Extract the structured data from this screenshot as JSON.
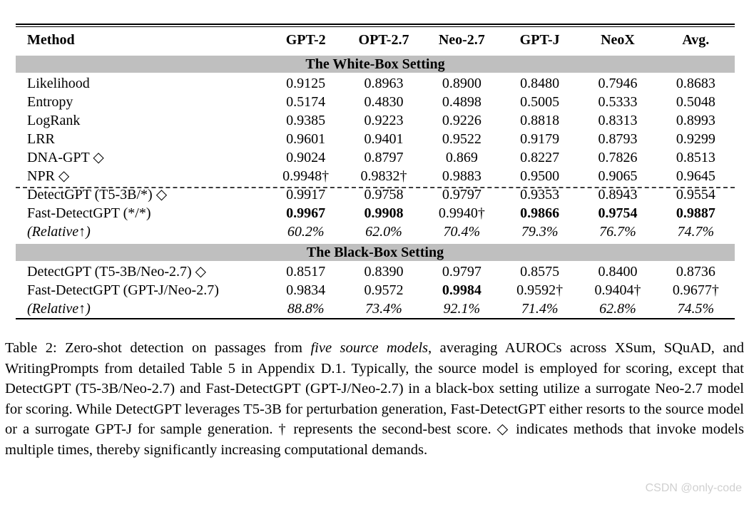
{
  "table": {
    "columns": [
      "Method",
      "GPT-2",
      "OPT-2.7",
      "Neo-2.7",
      "GPT-J",
      "NeoX",
      "Avg."
    ],
    "sections": [
      {
        "title": "The White-Box Setting",
        "rows": [
          {
            "cells": [
              "Likelihood",
              "0.9125",
              "0.8963",
              "0.8900",
              "0.8480",
              "0.7946",
              "0.8683"
            ]
          },
          {
            "cells": [
              "Entropy",
              "0.5174",
              "0.4830",
              "0.4898",
              "0.5005",
              "0.5333",
              "0.5048"
            ]
          },
          {
            "cells": [
              "LogRank",
              "0.9385",
              "0.9223",
              "0.9226",
              "0.8818",
              "0.8313",
              "0.8993"
            ]
          },
          {
            "cells": [
              "LRR",
              "0.9601",
              "0.9401",
              "0.9522",
              "0.9179",
              "0.8793",
              "0.9299"
            ]
          },
          {
            "cells": [
              "DNA-GPT ◇",
              "0.9024",
              "0.8797",
              "0.869",
              "0.8227",
              "0.7826",
              "0.8513"
            ]
          },
          {
            "cells": [
              "NPR ◇",
              "0.9948†",
              "0.9832†",
              "0.9883",
              "0.9500",
              "0.9065",
              "0.9645"
            ]
          },
          {
            "cells": [
              "DetectGPT (T5-3B/*) ◇",
              "0.9917",
              "0.9758",
              "0.9797",
              "0.9353",
              "0.8943",
              "0.9554"
            ]
          },
          {
            "cells": [
              "Fast-DetectGPT (*/*)",
              "0.9967",
              "0.9908",
              "0.9940†",
              "0.9866",
              "0.9754",
              "0.9887"
            ]
          },
          {
            "cells": [
              "(Relative↑)",
              "60.2%",
              "62.0%",
              "70.4%",
              "79.3%",
              "76.7%",
              "74.7%"
            ]
          }
        ]
      },
      {
        "title": "The Black-Box Setting",
        "rows": [
          {
            "cells": [
              "DetectGPT (T5-3B/Neo-2.7) ◇",
              "0.8517",
              "0.8390",
              "0.9797",
              "0.8575",
              "0.8400",
              "0.8736"
            ]
          },
          {
            "cells": [
              "Fast-DetectGPT (GPT-J/Neo-2.7)",
              "0.9834",
              "0.9572",
              "0.9984",
              "0.9592†",
              "0.9404†",
              "0.9677†"
            ]
          },
          {
            "cells": [
              "(Relative↑)",
              "88.8%",
              "73.4%",
              "92.1%",
              "71.4%",
              "62.8%",
              "74.5%"
            ]
          }
        ]
      }
    ]
  },
  "caption": {
    "lead": "Table 2: Zero-shot detection on passages from ",
    "emphasis": "five source models",
    "rest": ", averaging AUROCs across XSum, SQuAD, and WritingPrompts from detailed Table 5 in Appendix D.1. Typically, the source model is employed for scoring, except that DetectGPT (T5-3B/Neo-2.7) and Fast-DetectGPT (GPT-J/Neo-2.7) in a black-box setting utilize a surrogate Neo-2.7 model for scoring. While DetectGPT leverages T5-3B for perturbation generation, Fast-DetectGPT either resorts to the source model or a surrogate GPT-J for sample generation. † represents the second-best score. ◇ indicates methods that invoke models multiple times, thereby significantly increasing computational demands."
  },
  "watermark": "CSDN @only-code"
}
